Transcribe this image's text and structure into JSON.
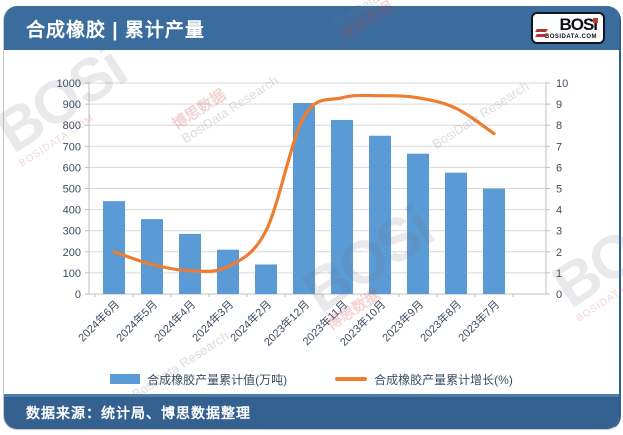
{
  "header": {
    "title": "合成橡胶 | 累计产量",
    "logo": {
      "text": "BOSi",
      "site": "BOSIDATA.COM"
    }
  },
  "footer": {
    "source": "数据来源：统计局、博思数据整理"
  },
  "watermark": {
    "brand": "BOSi",
    "cn": "博思数据",
    "en": "BosiData Research",
    "site": "BOSIDATA.COM"
  },
  "chart_data": {
    "type": "bar",
    "title": "合成橡胶 | 累计产量",
    "categories": [
      "2024年6月",
      "2024年5月",
      "2024年4月",
      "2024年3月",
      "2024年2月",
      "2023年12月",
      "2023年11月",
      "2023年10月",
      "2023年9月",
      "2023年8月",
      "2023年7月"
    ],
    "series": [
      {
        "name": "合成橡胶产量累计值(万吨)",
        "type": "bar",
        "axis": "left",
        "color": "#5b9bd5",
        "values": [
          440,
          355,
          285,
          210,
          140,
          905,
          825,
          750,
          665,
          575,
          500
        ]
      },
      {
        "name": "合成橡胶产量累计增长(%)",
        "type": "line",
        "axis": "right",
        "color": "#ed7d31",
        "values": [
          2.0,
          1.4,
          1.1,
          1.3,
          3.0,
          8.4,
          9.3,
          9.4,
          9.3,
          8.8,
          7.6
        ]
      }
    ],
    "left_axis": {
      "min": 0,
      "max": 1000,
      "step": 100,
      "label": ""
    },
    "right_axis": {
      "min": 0,
      "max": 10,
      "step": 1,
      "label": ""
    },
    "grid": true,
    "line_smooth": true,
    "legend_position": "bottom"
  }
}
